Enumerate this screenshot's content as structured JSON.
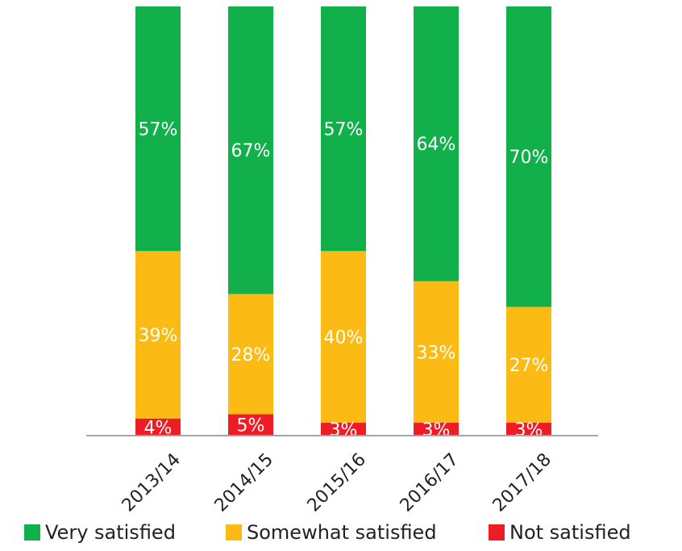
{
  "chart_data": {
    "type": "bar",
    "stacked": true,
    "categories": [
      "2013/14",
      "2014/15",
      "2015/16",
      "2016/17",
      "2017/18"
    ],
    "series": [
      {
        "name": "Not satisfied",
        "values": [
          4,
          5,
          3,
          3,
          3
        ],
        "labels": [
          "4%",
          "5%",
          "3%",
          "3%",
          "3%"
        ],
        "color": "#ee1c25"
      },
      {
        "name": "Somewhat satisfied",
        "values": [
          39,
          28,
          40,
          33,
          27
        ],
        "labels": [
          "39%",
          "28%",
          "40%",
          "33%",
          "27%"
        ],
        "color": "#fbbb14"
      },
      {
        "name": "Very satisfied",
        "values": [
          57,
          67,
          57,
          64,
          70
        ],
        "labels": [
          "57%",
          "67%",
          "57%",
          "64%",
          "70%"
        ],
        "color": "#12b04b"
      }
    ],
    "ylim": [
      0,
      100
    ],
    "grid": false,
    "legend": "bottom",
    "legend_order": [
      "Very satisfied",
      "Somewhat satisfied",
      "Not satisfied"
    ],
    "axis_color": "#a6a6a6"
  }
}
